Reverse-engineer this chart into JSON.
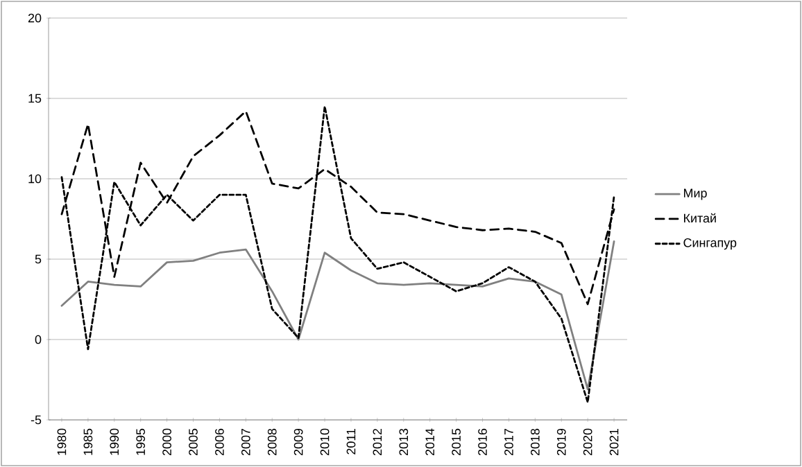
{
  "chart_data": {
    "type": "line",
    "categories": [
      "1980",
      "1985",
      "1990",
      "1995",
      "2000",
      "2005",
      "2006",
      "2007",
      "2008",
      "2009",
      "2010",
      "2011",
      "2012",
      "2013",
      "2014",
      "2015",
      "2016",
      "2017",
      "2018",
      "2019",
      "2020",
      "2021"
    ],
    "series": [
      {
        "name": "Мир",
        "color": "#808080",
        "line_style": "solid",
        "values": [
          2.1,
          3.6,
          3.4,
          3.3,
          4.8,
          4.9,
          5.4,
          5.6,
          3.0,
          0.0,
          5.4,
          4.3,
          3.5,
          3.4,
          3.5,
          3.4,
          3.3,
          3.8,
          3.6,
          2.8,
          -3.1,
          6.1
        ]
      },
      {
        "name": "Китай",
        "color": "#000000",
        "line_style": "dashed",
        "values": [
          7.8,
          13.4,
          3.9,
          11.0,
          8.5,
          11.4,
          12.7,
          14.2,
          9.7,
          9.4,
          10.6,
          9.5,
          7.9,
          7.8,
          7.4,
          7.0,
          6.8,
          6.9,
          6.7,
          6.0,
          2.2,
          8.1
        ]
      },
      {
        "name": "Сингапур",
        "color": "#000000",
        "line_style": "dotted",
        "values": [
          10.1,
          -0.6,
          9.8,
          7.1,
          9.0,
          7.4,
          9.0,
          9.0,
          1.9,
          0.1,
          14.5,
          6.3,
          4.4,
          4.8,
          3.9,
          3.0,
          3.5,
          4.5,
          3.6,
          1.3,
          -3.9,
          8.9
        ]
      }
    ],
    "ylim": [
      -5,
      20
    ],
    "yticks": [
      -5,
      0,
      5,
      10,
      15,
      20
    ],
    "grid": "y",
    "legend": "right",
    "marker": "none"
  }
}
